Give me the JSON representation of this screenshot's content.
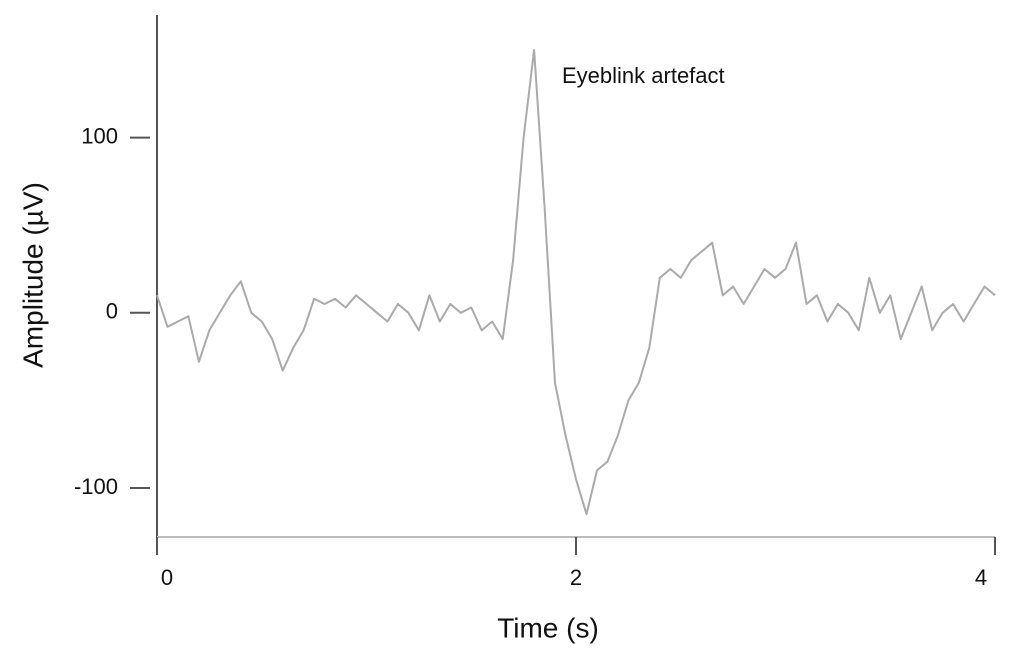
{
  "chart_data": {
    "type": "line",
    "xlabel": "Time (s)",
    "ylabel": "Amplitude (µV)",
    "annotation": "Eyeblink artefact",
    "xlim": [
      0,
      4
    ],
    "xticks": [
      0,
      2,
      4
    ],
    "ylim": [
      -128,
      170
    ],
    "yticks": [
      -100,
      0,
      100
    ],
    "grid": false,
    "series": [
      {
        "color": "#aaaaaa",
        "x": [
          0,
          0.05,
          0.1,
          0.15,
          0.2,
          0.25,
          0.3,
          0.35,
          0.4,
          0.45,
          0.5,
          0.55,
          0.6,
          0.65,
          0.7,
          0.75,
          0.8,
          0.85,
          0.9,
          0.95,
          1,
          1.05,
          1.1,
          1.15,
          1.2,
          1.25,
          1.3,
          1.35,
          1.4,
          1.45,
          1.5,
          1.55,
          1.6,
          1.65,
          1.7,
          1.75,
          1.8,
          1.85,
          1.9,
          1.95,
          2,
          2.05,
          2.1,
          2.15,
          2.2,
          2.25,
          2.3,
          2.35,
          2.4,
          2.45,
          2.5,
          2.55,
          2.6,
          2.65,
          2.7,
          2.75,
          2.8,
          2.85,
          2.9,
          2.95,
          3,
          3.05,
          3.1,
          3.15,
          3.2,
          3.25,
          3.3,
          3.35,
          3.4,
          3.45,
          3.5,
          3.55,
          3.6,
          3.65,
          3.7,
          3.75,
          3.8,
          3.85,
          3.9,
          3.95,
          4
        ],
        "values": [
          10,
          -8,
          -5,
          -2,
          -28,
          -10,
          0,
          10,
          18,
          0,
          -5,
          -15,
          -33,
          -20,
          -10,
          8,
          5,
          8,
          3,
          10,
          5,
          0,
          -5,
          5,
          0,
          -10,
          10,
          -5,
          5,
          0,
          3,
          -10,
          -5,
          -15,
          30,
          100,
          150,
          60,
          -40,
          -70,
          -95,
          -115,
          -90,
          -85,
          -70,
          -50,
          -40,
          -20,
          20,
          25,
          20,
          30,
          35,
          40,
          10,
          15,
          5,
          15,
          25,
          20,
          25,
          40,
          5,
          10,
          -5,
          5,
          0,
          -10,
          20,
          0,
          10,
          -15,
          0,
          15,
          -10,
          0,
          5,
          -5,
          5,
          15,
          10
        ]
      }
    ]
  }
}
